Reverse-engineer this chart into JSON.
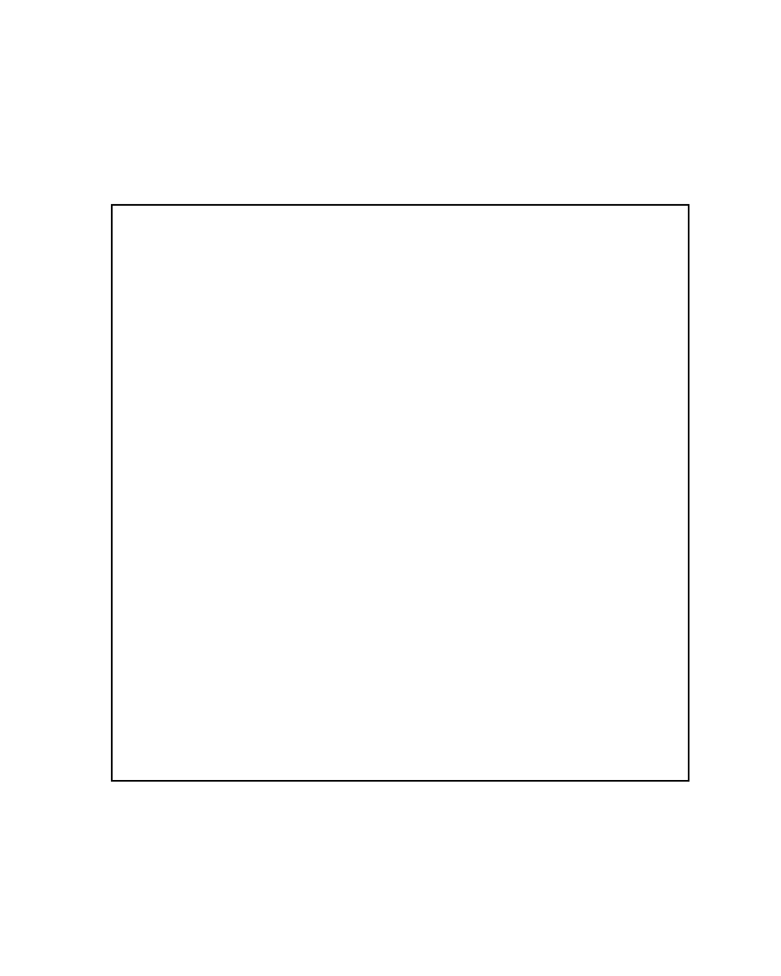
{
  "bg_color": "#ffffff",
  "border_color": "#000000",
  "line_color": "#000000",
  "lw": 2.5,
  "fig_w": 9.64,
  "fig_h": 12.05,
  "labels_fs": 16
}
